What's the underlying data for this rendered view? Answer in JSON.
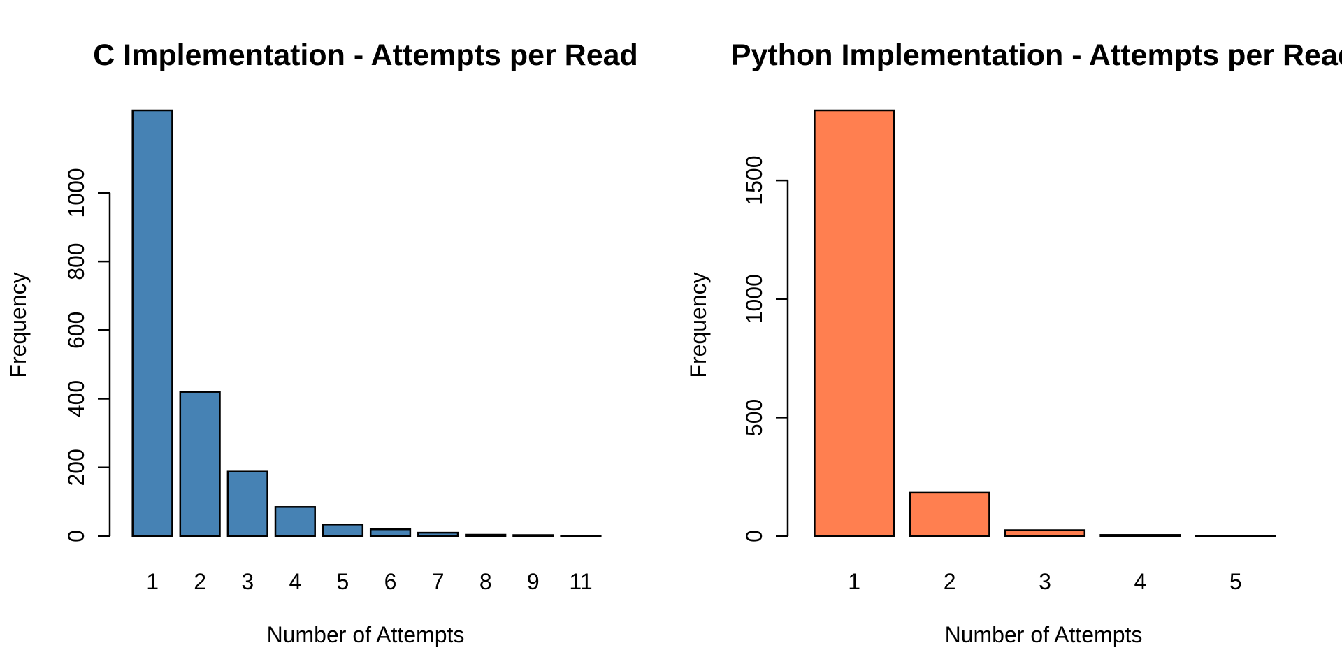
{
  "chart_data": [
    {
      "type": "bar",
      "title": "C Implementation - Attempts per Read",
      "xlabel": "Number of Attempts",
      "ylabel": "Frequency",
      "categories": [
        "1",
        "2",
        "3",
        "4",
        "5",
        "6",
        "7",
        "8",
        "9",
        "11"
      ],
      "values": [
        1240,
        420,
        188,
        85,
        34,
        20,
        10,
        4,
        3,
        1
      ],
      "yticks": [
        0,
        200,
        400,
        600,
        800,
        1000
      ],
      "ylim": [
        0,
        1240
      ],
      "bar_color": "#4682B4",
      "grid": false
    },
    {
      "type": "bar",
      "title": "Python Implementation - Attempts per Read",
      "xlabel": "Number of Attempts",
      "ylabel": "Frequency",
      "categories": [
        "1",
        "2",
        "3",
        "4",
        "5"
      ],
      "values": [
        1795,
        183,
        25,
        5,
        2
      ],
      "yticks": [
        0,
        500,
        1000,
        1500
      ],
      "ylim": [
        0,
        1795
      ],
      "bar_color": "#FF7F50",
      "grid": false
    }
  ]
}
